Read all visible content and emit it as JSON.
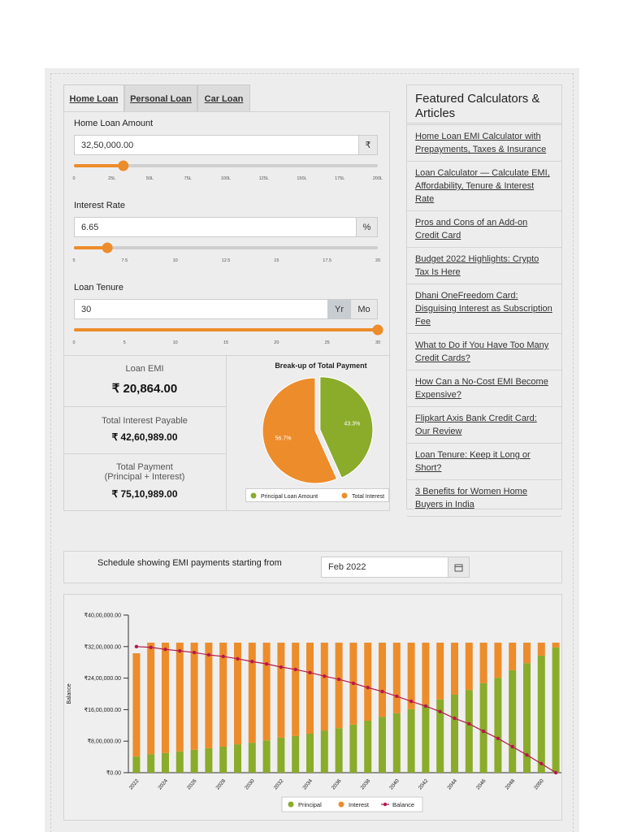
{
  "tabs": [
    "Home Loan",
    "Personal Loan",
    "Car Loan"
  ],
  "inputs": [
    {
      "label": "Home Loan Amount",
      "value": "32,50,000.00",
      "addons": [
        "₹"
      ],
      "slider": {
        "lim": [
          0,
          200
        ],
        "value": 32.5,
        "ticks": [
          0,
          {
            "value": 25,
            "label": "25L"
          },
          {
            "value": 50,
            "label": "50L"
          },
          {
            "value": 75,
            "label": "75L"
          },
          {
            "value": 100,
            "label": "100L"
          },
          {
            "value": 125,
            "label": "125L"
          },
          {
            "value": 150,
            "label": "150L"
          },
          {
            "value": 175,
            "label": "175L"
          },
          {
            "value": 200,
            "label": "200L"
          }
        ]
      }
    },
    {
      "label": "Interest Rate",
      "value": "6.65",
      "addons": [
        "%"
      ],
      "slider": {
        "lim": [
          5,
          20
        ],
        "value": 6.65,
        "ticks": [
          5,
          7.5,
          10,
          12.5,
          15,
          17.5,
          20
        ]
      }
    },
    {
      "label": "Loan Tenure",
      "value": "30",
      "addons": [
        "Yr",
        "Mo"
      ],
      "slider": {
        "lim": [
          0,
          30
        ],
        "value": 30,
        "ticks": [
          0,
          5,
          10,
          15,
          20,
          25,
          30
        ]
      }
    }
  ],
  "results": [
    {
      "label": "Loan EMI",
      "value": "₹ 20,864.00"
    },
    {
      "label": "Total Interest Payable",
      "value": "₹ 42,60,989.00"
    },
    {
      "label": "Total Payment",
      "sublabel": "(Principal + Interest)",
      "value": "₹ 75,10,989.00"
    }
  ],
  "sidebar": {
    "title": "Featured Calculators & Articles",
    "links": [
      "Home Loan EMI Calculator with Prepayments, Taxes & Insurance",
      "Loan Calculator — Calculate EMI, Affordability, Tenure & Interest Rate",
      "Pros and Cons of an Add-on Credit Card",
      "Budget 2022 Highlights: Crypto Tax Is Here",
      "Dhani OneFreedom Card: Disguising Interest as Subscription Fee",
      "What to Do if You Have Too Many Credit Cards?",
      "How Can a No-Cost EMI Become Expensive?",
      "Flipkart Axis Bank Credit Card: Our Review",
      "Loan Tenure: Keep it Long or Short?",
      "3 Benefits for Women Home Buyers in India"
    ]
  },
  "schedule": {
    "label": "Schedule showing EMI payments starting from",
    "value": "Feb 2022"
  },
  "chart_data": [
    {
      "type": "pie",
      "title": "Break-up of Total Payment",
      "categories": [
        "Principal Loan Amount",
        "Total Interest"
      ],
      "values": [
        43.3,
        56.7
      ],
      "value_labels": [
        "43.3%",
        "56.7%"
      ],
      "colors": [
        "#8bab2b",
        "#ed8c2b"
      ]
    },
    {
      "type": "bar",
      "stacked": true,
      "ylabel": "Balance",
      "categories": [
        "2022",
        null,
        "2024",
        null,
        "2026",
        null,
        "2028",
        null,
        "2030",
        null,
        "2032",
        null,
        "2034",
        null,
        "2036",
        null,
        "2038",
        null,
        "2040",
        null,
        "2042",
        null,
        "2044",
        null,
        "2046",
        null,
        "2048",
        null,
        "2050",
        null
      ],
      "series": [
        {
          "name": "Principal",
          "color": "#8bab2b",
          "values": [
            410000,
            470000,
            500000,
            540000,
            580000,
            620000,
            660000,
            720000,
            760000,
            820000,
            890000,
            930000,
            990000,
            1070000,
            1130000,
            1220000,
            1320000,
            1420000,
            1510000,
            1610000,
            1730000,
            1860000,
            1980000,
            2100000,
            2270000,
            2410000,
            2600000,
            2780000,
            2970000,
            3180000
          ]
        },
        {
          "name": "Interest",
          "color": "#ed8c2b",
          "values": [
            2620000,
            2830000,
            2800000,
            2760000,
            2720000,
            2680000,
            2640000,
            2580000,
            2540000,
            2480000,
            2410000,
            2370000,
            2310000,
            2230000,
            2170000,
            2080000,
            1980000,
            1880000,
            1790000,
            1690000,
            1570000,
            1440000,
            1320000,
            1200000,
            1030000,
            890000,
            700000,
            520000,
            330000,
            120000
          ]
        },
        {
          "name": "Balance",
          "type": "line",
          "color": "#b5184b",
          "values": [
            3200000,
            3180000,
            3130000,
            3090000,
            3050000,
            2990000,
            2950000,
            2890000,
            2820000,
            2760000,
            2680000,
            2620000,
            2540000,
            2450000,
            2370000,
            2270000,
            2160000,
            2060000,
            1940000,
            1810000,
            1690000,
            1550000,
            1380000,
            1240000,
            1050000,
            870000,
            660000,
            450000,
            230000,
            0
          ]
        }
      ],
      "ylim": [
        0,
        4000000
      ],
      "yticks": [
        {
          "value": 0,
          "label": "₹0.00"
        },
        {
          "value": 800000,
          "label": "₹8,00,000.00"
        },
        {
          "value": 1600000,
          "label": "₹16,00,000.00"
        },
        {
          "value": 2400000,
          "label": "₹24,00,000.00"
        },
        {
          "value": 3200000,
          "label": "₹32,00,000.00"
        },
        {
          "value": 4000000,
          "label": "₹40,00,000.00"
        }
      ]
    }
  ]
}
